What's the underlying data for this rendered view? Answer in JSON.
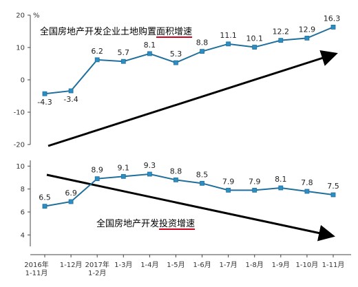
{
  "colors": {
    "series": "#1f6e9c",
    "marker": "#2c8ec1",
    "trend": "#000000",
    "underline": "#d0021b",
    "axis": "#444444"
  },
  "chart_data": [
    {
      "type": "line",
      "title": "全国房地产开发企业土地购置面积增速",
      "title_plain": "全国房地产开发企业土地购置",
      "title_underlined": "面积增速",
      "y_unit": "%",
      "ylim": [
        -20,
        20
      ],
      "yticks": [
        -20,
        -10,
        0,
        10,
        20
      ],
      "ytick_labels": [
        "-20",
        "-10",
        "0",
        "10",
        "20"
      ],
      "values": [
        -4.3,
        -3.4,
        6.2,
        5.7,
        8.1,
        5.3,
        8.8,
        11.1,
        10.1,
        12.2,
        12.9,
        16.3
      ],
      "data_labels": [
        "-4.3",
        "-3.4",
        "6.2",
        "5.7",
        "8.1",
        "5.3",
        "8.8",
        "11.1",
        "10.1",
        "12.2",
        "12.9",
        "16.3"
      ],
      "trend": "up",
      "grid": false,
      "legend": "none"
    },
    {
      "type": "line",
      "title": "全国房地产开发投资增速",
      "title_plain": "全国房地产开发",
      "title_underlined": "投资增速",
      "ylim": [
        3,
        10.5
      ],
      "yticks": [
        4,
        6,
        8,
        10
      ],
      "ytick_labels": [
        "4",
        "6",
        "8",
        "10"
      ],
      "values": [
        6.5,
        6.9,
        8.9,
        9.1,
        9.3,
        8.8,
        8.5,
        7.9,
        7.9,
        8.1,
        7.8,
        7.5
      ],
      "data_labels": [
        "6.5",
        "6.9",
        "8.9",
        "9.1",
        "9.3",
        "8.8",
        "8.5",
        "7.9",
        "7.9",
        "8.1",
        "7.8",
        "7.5"
      ],
      "trend": "down",
      "grid": false,
      "legend": "none"
    }
  ],
  "categories": [
    [
      "2016年",
      "1-11月"
    ],
    [
      "1-12月"
    ],
    [
      "2017年",
      "1-2月"
    ],
    [
      "1-3月"
    ],
    [
      "1-4月"
    ],
    [
      "1-5月"
    ],
    [
      "1-6月"
    ],
    [
      "1-7月"
    ],
    [
      "1-8月"
    ],
    [
      "1-9月"
    ],
    [
      "1-10月"
    ],
    [
      "1-11月"
    ]
  ]
}
